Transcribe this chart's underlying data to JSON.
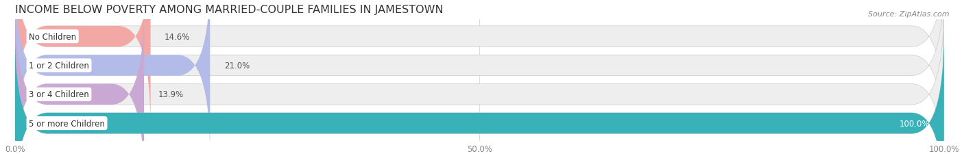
{
  "title": "INCOME BELOW POVERTY AMONG MARRIED-COUPLE FAMILIES IN JAMESTOWN",
  "source": "Source: ZipAtlas.com",
  "categories": [
    "No Children",
    "1 or 2 Children",
    "3 or 4 Children",
    "5 or more Children"
  ],
  "values": [
    14.6,
    21.0,
    13.9,
    100.0
  ],
  "bar_colors": [
    "#f2a8a5",
    "#b3bce8",
    "#c9a8d4",
    "#38b2b8"
  ],
  "bg_color_bars": [
    "#eeeeee",
    "#eeeeee",
    "#eeeeee",
    "#eeeeee"
  ],
  "value_label_colors": [
    "#555555",
    "#555555",
    "#555555",
    "#ffffff"
  ],
  "xlim": [
    0,
    100
  ],
  "xticks": [
    0.0,
    50.0,
    100.0
  ],
  "xtick_labels": [
    "0.0%",
    "50.0%",
    "100.0%"
  ],
  "title_fontsize": 11.5,
  "bar_height": 0.72,
  "bar_gap": 1.0,
  "figsize": [
    14.06,
    2.32
  ],
  "dpi": 100,
  "background_color": "#ffffff",
  "grid_color": "#dddddd",
  "rounding_size": 3.5
}
